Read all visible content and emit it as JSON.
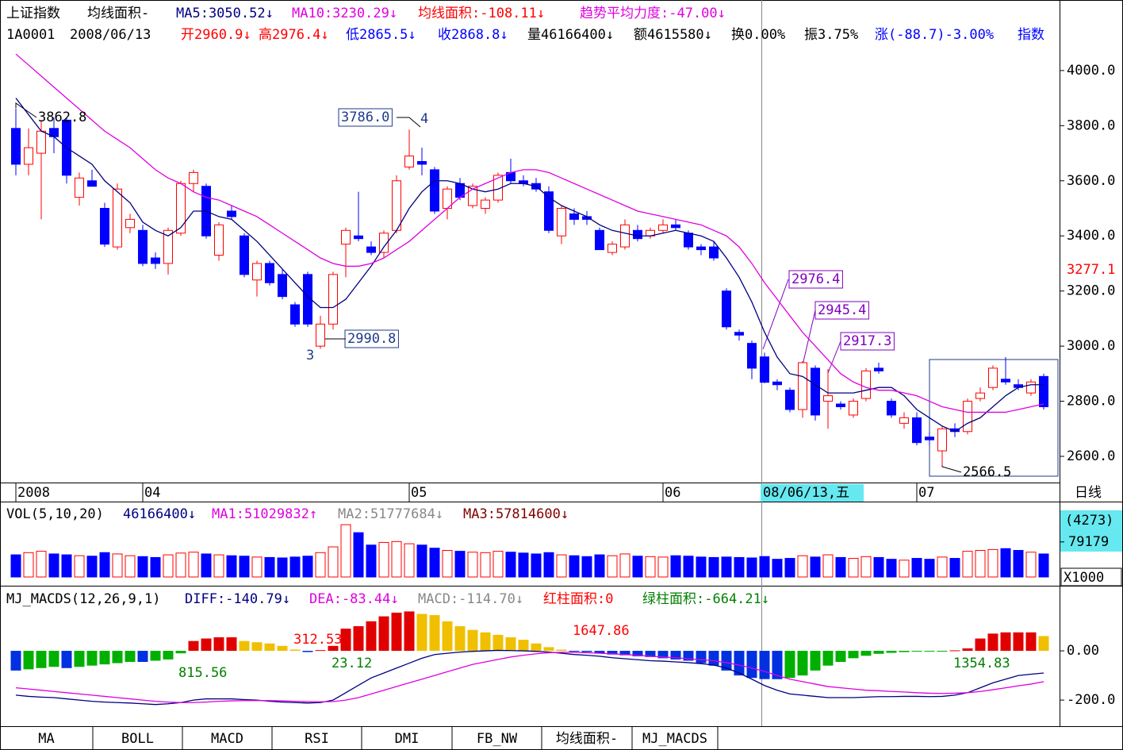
{
  "header": {
    "line1": [
      "上证指数",
      "均线面积-",
      "MA5:3050.52↓",
      "MA10:3230.29↓",
      "均线面积:-108.11↓",
      "趋势平均力度:-47.00↓"
    ],
    "line2": [
      "1A0001",
      "2008/06/13",
      "开2960.9↓",
      "高2976.4↓",
      "低2865.5↓",
      "收2868.8↓",
      "量46166400↓",
      "额4615580↓",
      "换0.00%",
      "振3.75%",
      "涨(-88.7)-3.00%",
      "指数"
    ],
    "period": "日线",
    "volume_line": [
      "VOL(5,10,20)",
      "46166400↓",
      "MA1:51029832↑",
      "MA2:51777684↓",
      "MA3:57814600↓"
    ],
    "macd_line": [
      "MJ_MACDS(12,26,9,1)",
      "DIFF:-140.79↓",
      "DEA:-83.44↓",
      "MACD:-114.70↓",
      "红柱面积:0",
      "绿柱面积:-664.21↓"
    ],
    "tabs": [
      "MA",
      "BOLL",
      "MACD",
      "RSI",
      "DMI",
      "FB_NW",
      "均线面积-",
      "MJ_MACDS"
    ]
  },
  "chart_data": [
    {
      "type": "candlestick",
      "categories": [
        "2008",
        null,
        null,
        null,
        null,
        null,
        null,
        null,
        null,
        null,
        "04",
        null,
        null,
        null,
        null,
        null,
        null,
        null,
        null,
        null,
        null,
        null,
        null,
        null,
        null,
        null,
        null,
        null,
        null,
        null,
        null,
        "05",
        null,
        null,
        null,
        null,
        null,
        null,
        null,
        null,
        null,
        null,
        null,
        null,
        null,
        null,
        null,
        null,
        null,
        null,
        null,
        "06",
        null,
        null,
        null,
        null,
        null,
        null,
        null,
        null,
        null,
        null,
        null,
        null,
        null,
        null,
        null,
        null,
        null,
        null,
        null,
        "07",
        null,
        null,
        null,
        null,
        null,
        null,
        null,
        null,
        null,
        null
      ],
      "open": [
        3790,
        3660,
        3700,
        3790,
        3820,
        3540,
        3600,
        3500,
        3360,
        3430,
        3420,
        3320,
        3300,
        3410,
        3590,
        3580,
        3330,
        3490,
        3400,
        3240,
        3300,
        3260,
        3150,
        3260,
        3000,
        3080,
        3370,
        3400,
        3360,
        3340,
        3420,
        3650,
        3670,
        3640,
        3500,
        3590,
        3510,
        3500,
        3530,
        3630,
        3600,
        3590,
        3560,
        3400,
        3480,
        3470,
        3420,
        3340,
        3360,
        3420,
        3400,
        3420,
        3440,
        3410,
        3360,
        3360,
        3200,
        3050,
        3010,
        2960.9,
        2870,
        2840,
        2770,
        2920,
        2800,
        2790,
        2750,
        2810,
        2920,
        2800,
        2720,
        2740,
        2670,
        2620,
        2700,
        2690,
        2810,
        2850,
        2880,
        2860,
        2830,
        2890
      ],
      "high": [
        3862.8,
        3790,
        3820,
        3830,
        3830,
        3630,
        3640,
        3520,
        3590,
        3480,
        3440,
        3340,
        3430,
        3600,
        3640,
        3590,
        3450,
        3510,
        3410,
        3310,
        3310,
        3280,
        3160,
        3270,
        3110,
        3270,
        3430,
        3560,
        3380,
        3420,
        3620,
        3786,
        3720,
        3650,
        3580,
        3610,
        3590,
        3540,
        3630,
        3680,
        3620,
        3610,
        3580,
        3510,
        3500,
        3490,
        3430,
        3380,
        3460,
        3440,
        3430,
        3460,
        3460,
        3420,
        3370,
        3380,
        3210,
        3060,
        3020,
        2976.4,
        2880,
        2850,
        2945.4,
        2930,
        2917.3,
        2800,
        2810,
        2920,
        2940,
        2810,
        2760,
        2760,
        2690,
        2710,
        2720,
        2810,
        2850,
        2930,
        2960,
        2880,
        2880,
        2900
      ],
      "low": [
        3620,
        3620,
        3460,
        3700,
        3590,
        3510,
        3580,
        3360,
        3350,
        3410,
        3290,
        3280,
        3260,
        3400,
        3560,
        3390,
        3310,
        3460,
        3250,
        3180,
        3220,
        3170,
        3070,
        3070,
        2990.8,
        3060,
        3250,
        3380,
        3330,
        3320,
        3410,
        3640,
        3620,
        3480,
        3460,
        3530,
        3500,
        3480,
        3520,
        3590,
        3580,
        3560,
        3410,
        3370,
        3440,
        3440,
        3350,
        3330,
        3350,
        3380,
        3390,
        3410,
        3420,
        3350,
        3330,
        3310,
        3060,
        3020,
        2880,
        2865.5,
        2840,
        2760,
        2740,
        2730,
        2700,
        2770,
        2740,
        2800,
        2900,
        2740,
        2700,
        2640,
        2640,
        2566.5,
        2670,
        2680,
        2800,
        2840,
        2860,
        2840,
        2820,
        2770
      ],
      "close": [
        3660,
        3720,
        3780,
        3760,
        3620,
        3610,
        3580,
        3370,
        3570,
        3460,
        3300,
        3300,
        3420,
        3590,
        3630,
        3400,
        3440,
        3470,
        3260,
        3300,
        3230,
        3180,
        3080,
        3080,
        3080,
        3260,
        3420,
        3390,
        3340,
        3410,
        3600,
        3690,
        3660,
        3490,
        3570,
        3540,
        3580,
        3530,
        3620,
        3600,
        3590,
        3570,
        3420,
        3500,
        3460,
        3460,
        3350,
        3370,
        3440,
        3390,
        3420,
        3440,
        3430,
        3360,
        3350,
        3320,
        3070,
        3040,
        2920,
        2868.8,
        2860,
        2770,
        2940,
        2750,
        2820,
        2780,
        2800,
        2910,
        2910,
        2750,
        2740,
        2650,
        2660,
        2700,
        2690,
        2800,
        2830,
        2920,
        2870,
        2850,
        2870,
        2780
      ],
      "up_color": "#ff0000",
      "down_color": "#0000ff",
      "lines": [
        {
          "color": "#000080",
          "values": [
            3900,
            3840,
            3780,
            3760,
            3720,
            3690,
            3660,
            3600,
            3560,
            3520,
            3450,
            3420,
            3400,
            3430,
            3490,
            3490,
            3470,
            3460,
            3420,
            3380,
            3330,
            3280,
            3230,
            3180,
            3140,
            3140,
            3170,
            3230,
            3290,
            3360,
            3420,
            3500,
            3560,
            3600,
            3600,
            3590,
            3570,
            3560,
            3570,
            3590,
            3590,
            3580,
            3540,
            3510,
            3490,
            3470,
            3440,
            3420,
            3410,
            3400,
            3400,
            3410,
            3420,
            3410,
            3400,
            3380,
            3320,
            3250,
            3160,
            3050.52,
            2960,
            2900,
            2890,
            2860,
            2830,
            2830,
            2830,
            2840,
            2850,
            2850,
            2820,
            2770,
            2740,
            2710,
            2690,
            2720,
            2740,
            2780,
            2820,
            2850,
            2860,
            2860
          ]
        },
        {
          "color": "#e000e0",
          "values": [
            4060,
            4020,
            3980,
            3940,
            3900,
            3860,
            3820,
            3780,
            3750,
            3720,
            3680,
            3640,
            3610,
            3590,
            3560,
            3540,
            3530,
            3510,
            3490,
            3470,
            3440,
            3410,
            3380,
            3350,
            3320,
            3300,
            3290,
            3290,
            3300,
            3320,
            3350,
            3380,
            3420,
            3460,
            3500,
            3540,
            3570,
            3590,
            3610,
            3630,
            3640,
            3640,
            3630,
            3610,
            3590,
            3570,
            3550,
            3530,
            3510,
            3490,
            3480,
            3470,
            3460,
            3450,
            3440,
            3420,
            3400,
            3360,
            3300,
            3230.29,
            3170,
            3110,
            3050,
            3000,
            2950,
            2900,
            2870,
            2850,
            2840,
            2840,
            2830,
            2820,
            2800,
            2780,
            2770,
            2760,
            2760,
            2760,
            2760,
            2770,
            2780,
            2790
          ]
        }
      ],
      "ylim": [
        2505,
        4256
      ],
      "yticks": [
        {
          "value": 4000,
          "label": "4000.0"
        },
        {
          "value": 3800,
          "label": "3800.0"
        },
        {
          "value": 3600,
          "label": "3600.0"
        },
        {
          "value": 3400,
          "label": "3400.0"
        },
        {
          "value": 3200,
          "label": "3200.0"
        },
        {
          "value": 3000,
          "label": "3000.0"
        },
        {
          "value": 2800,
          "label": "2800.0"
        },
        {
          "value": 2600,
          "label": "2600.0"
        }
      ],
      "cursor_price": 3277.1,
      "cursor_date": "08/06/13,五",
      "annotations": [
        "3862.8",
        "3786.0",
        "4",
        "3",
        "2990.8",
        "2976.4",
        "2945.4",
        "2917.3",
        "2566.5"
      ]
    },
    {
      "type": "bar",
      "values": [
        50000000,
        55000000,
        58000000,
        52000000,
        50000000,
        48000000,
        47000000,
        55000000,
        52000000,
        48000000,
        46000000,
        44000000,
        50000000,
        54000000,
        56000000,
        52000000,
        50000000,
        48000000,
        47000000,
        45000000,
        44000000,
        43000000,
        45000000,
        47000000,
        55000000,
        68000000,
        118000000,
        100000000,
        72000000,
        78000000,
        80000000,
        75000000,
        72000000,
        65000000,
        60000000,
        58000000,
        56000000,
        55000000,
        58000000,
        56000000,
        54000000,
        52000000,
        55000000,
        50000000,
        48000000,
        46000000,
        50000000,
        48000000,
        52000000,
        47000000,
        46000000,
        45000000,
        48000000,
        47000000,
        45000000,
        44000000,
        45000000,
        44000000,
        43000000,
        46166400,
        40000000,
        42000000,
        48000000,
        45000000,
        50000000,
        44000000,
        42000000,
        46000000,
        44000000,
        40000000,
        38000000,
        42000000,
        40000000,
        45000000,
        42000000,
        58000000,
        60000000,
        62000000,
        64000000,
        60000000,
        56000000,
        52000000
      ],
      "ylim": [
        0,
        120000000
      ],
      "yticks": [
        {
          "value": 79179000,
          "label": "79179"
        }
      ],
      "cursor_label": "(4273)",
      "unit_label": "X1000"
    },
    {
      "type": "macd",
      "values": [
        -80,
        -75,
        -70,
        -65,
        -70,
        -65,
        -60,
        -55,
        -50,
        -45,
        -45,
        -40,
        -35,
        -10,
        40,
        50,
        55,
        55,
        40,
        35,
        30,
        20,
        5,
        -5,
        3,
        20,
        90,
        100,
        120,
        140,
        155,
        160,
        150,
        145,
        120,
        100,
        85,
        75,
        65,
        55,
        45,
        30,
        15,
        5,
        -2,
        -5,
        -10,
        -15,
        -18,
        -22,
        -25,
        -30,
        -35,
        -40,
        -50,
        -60,
        -80,
        -100,
        -110,
        -114.7,
        -115,
        -110,
        -100,
        -80,
        -60,
        -45,
        -30,
        -20,
        -12,
        -8,
        -5,
        -3,
        -2,
        -1,
        2,
        10,
        50,
        70,
        75,
        75,
        75,
        60
      ],
      "colors": {
        "rise_up": "#e00000",
        "fall_up": "#f0c000",
        "fall_down": "#0030e0",
        "rise_down": "#00b000"
      },
      "lines": [
        {
          "color": "#000080",
          "values": [
            -180,
            -185,
            -188,
            -190,
            -195,
            -200,
            -205,
            -208,
            -210,
            -212,
            -215,
            -218,
            -215,
            -210,
            -200,
            -195,
            -195,
            -195,
            -198,
            -200,
            -205,
            -208,
            -210,
            -212,
            -210,
            -200,
            -170,
            -140,
            -110,
            -90,
            -70,
            -50,
            -30,
            -15,
            -10,
            -5,
            -2,
            0,
            2,
            1,
            0,
            -2,
            -5,
            -10,
            -15,
            -18,
            -22,
            -28,
            -32,
            -36,
            -40,
            -42,
            -45,
            -48,
            -52,
            -58,
            -70,
            -90,
            -115,
            -140.79,
            -160,
            -175,
            -180,
            -185,
            -190,
            -190,
            -190,
            -188,
            -186,
            -186,
            -185,
            -185,
            -186,
            -185,
            -180,
            -170,
            -150,
            -130,
            -115,
            -100,
            -95,
            -90
          ]
        },
        {
          "color": "#e000e0",
          "values": [
            -150,
            -155,
            -160,
            -165,
            -170,
            -175,
            -180,
            -185,
            -190,
            -195,
            -200,
            -205,
            -208,
            -210,
            -210,
            -208,
            -205,
            -203,
            -202,
            -202,
            -202,
            -203,
            -205,
            -206,
            -207,
            -206,
            -200,
            -190,
            -175,
            -160,
            -145,
            -130,
            -115,
            -100,
            -85,
            -70,
            -55,
            -45,
            -35,
            -25,
            -18,
            -12,
            -8,
            -6,
            -6,
            -8,
            -10,
            -12,
            -15,
            -18,
            -22,
            -25,
            -28,
            -32,
            -36,
            -40,
            -48,
            -58,
            -70,
            -83.44,
            -100,
            -115,
            -125,
            -135,
            -145,
            -150,
            -155,
            -160,
            -162,
            -165,
            -167,
            -170,
            -172,
            -173,
            -172,
            -170,
            -165,
            -158,
            -150,
            -142,
            -135,
            -125
          ]
        }
      ],
      "ylim": [
        -306,
        258
      ],
      "yticks": [
        {
          "value": 0,
          "label": "0.00"
        },
        {
          "value": -200,
          "label": "-200.0"
        }
      ],
      "annotations": [
        "815.56",
        "312.53",
        "23.12",
        "1647.86",
        "1354.83"
      ]
    }
  ]
}
